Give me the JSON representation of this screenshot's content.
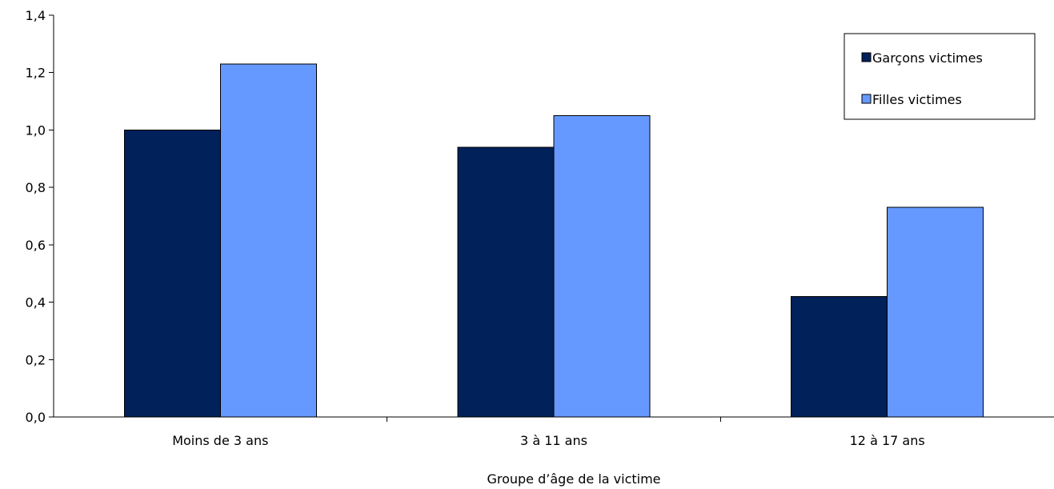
{
  "chart_data": {
    "type": "bar",
    "categories": [
      "Moins de 3 ans",
      "3 à 11 ans",
      "12 à 17 ans"
    ],
    "series": [
      {
        "name": "Garçons victimes",
        "values": [
          1.0,
          0.94,
          0.42
        ],
        "color": "#00215a"
      },
      {
        "name": "Filles victimes",
        "values": [
          1.23,
          1.05,
          0.73
        ],
        "color": "#6699ff"
      }
    ],
    "title": "",
    "xlabel": "Groupe d’âge de la victime",
    "ylabel": "",
    "ylim": [
      0,
      1.4
    ],
    "yticks": [
      "0,0",
      "0,2",
      "0,4",
      "0,6",
      "0,8",
      "1,0",
      "1,2",
      "1,4"
    ],
    "grid": false,
    "legend_position": "top-right"
  }
}
